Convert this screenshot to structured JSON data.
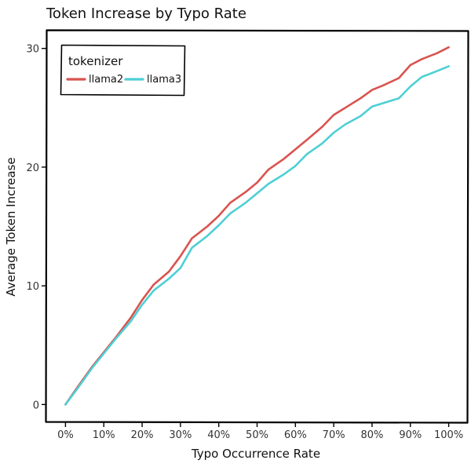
{
  "chart_data": {
    "type": "line",
    "title": "Token Increase by Typo Rate",
    "xlabel": "Typo Occurrence Rate",
    "ylabel": "Average Token Increase",
    "x": [
      0,
      0.03,
      0.07,
      0.1,
      0.13,
      0.17,
      0.2,
      0.23,
      0.27,
      0.3,
      0.33,
      0.37,
      0.4,
      0.43,
      0.47,
      0.5,
      0.53,
      0.57,
      0.6,
      0.63,
      0.67,
      0.7,
      0.73,
      0.77,
      0.8,
      0.83,
      0.87,
      0.9,
      0.93,
      0.97,
      1.0
    ],
    "series": [
      {
        "name": "llama2",
        "color": "#d9534f",
        "values": [
          0.0,
          1.4,
          3.2,
          4.4,
          5.6,
          7.3,
          8.8,
          10.1,
          11.2,
          12.5,
          14.0,
          15.0,
          15.9,
          17.0,
          17.9,
          18.7,
          19.8,
          20.7,
          21.5,
          22.3,
          23.4,
          24.4,
          25.0,
          25.8,
          26.5,
          26.9,
          27.5,
          28.6,
          29.1,
          29.6,
          30.1
        ]
      },
      {
        "name": "llama3",
        "color": "#4ecfd5",
        "values": [
          0.0,
          1.3,
          3.1,
          4.3,
          5.5,
          7.0,
          8.4,
          9.6,
          10.6,
          11.5,
          13.2,
          14.2,
          15.1,
          16.1,
          17.0,
          17.8,
          18.6,
          19.4,
          20.1,
          21.1,
          22.0,
          22.9,
          23.6,
          24.3,
          25.1,
          25.4,
          25.8,
          26.8,
          27.6,
          28.1,
          28.5
        ]
      }
    ],
    "x_ticks": [
      {
        "value": 0,
        "label": "0%"
      },
      {
        "value": 0.1,
        "label": "10%"
      },
      {
        "value": 0.2,
        "label": "20%"
      },
      {
        "value": 0.3,
        "label": "30%"
      },
      {
        "value": 0.4,
        "label": "40%"
      },
      {
        "value": 0.5,
        "label": "50%"
      },
      {
        "value": 0.6,
        "label": "60%"
      },
      {
        "value": 0.7,
        "label": "70%"
      },
      {
        "value": 0.8,
        "label": "80%"
      },
      {
        "value": 0.9,
        "label": "90%"
      },
      {
        "value": 1.0,
        "label": "100%"
      }
    ],
    "y_ticks": [
      {
        "value": 0,
        "label": "0"
      },
      {
        "value": 10,
        "label": "10"
      },
      {
        "value": 20,
        "label": "20"
      },
      {
        "value": 30,
        "label": "30"
      }
    ],
    "xlim": [
      -0.05,
      1.05
    ],
    "ylim": [
      -1.5,
      31.5
    ],
    "grid": false,
    "legend": {
      "title": "tokenizer",
      "placement": "top-left"
    }
  }
}
